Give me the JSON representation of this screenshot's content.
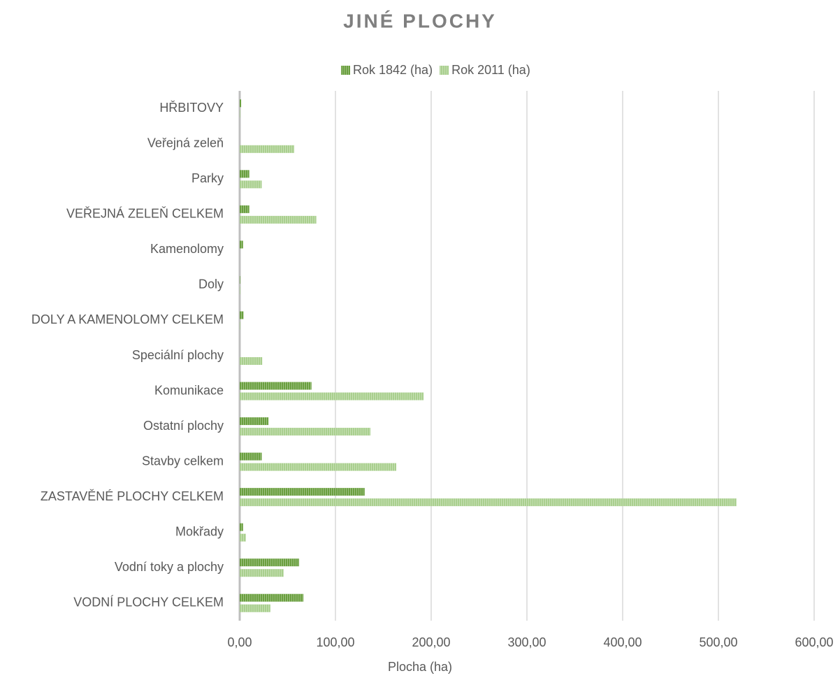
{
  "chart_data": {
    "type": "bar",
    "orientation": "horizontal",
    "title": "JINÉ PLOCHY",
    "xlabel": "Plocha (ha)",
    "categories": [
      "HŘBITOVY",
      "Veřejná zeleň",
      "Parky",
      "VEŘEJNÁ ZELEŇ CELKEM",
      "Kamenolomy",
      "Doly",
      "DOLY A KAMENOLOMY CELKEM",
      "Speciální plochy",
      "Komunikace",
      "Ostatní plochy",
      "Stavby celkem",
      "ZASTAVĚNÉ PLOCHY CELKEM",
      "Mokřady",
      "Vodní toky a plochy",
      "VODNÍ PLOCHY CELKEM"
    ],
    "series": [
      {
        "name": "Rok 1842 (ha)",
        "color": "#6a9f3f",
        "values": [
          1.5,
          0,
          10,
          10,
          3.5,
          0.5,
          4,
          0,
          75,
          30,
          23,
          130.5,
          3.5,
          62,
          66.5
        ]
      },
      {
        "name": "Rok 2011 (ha)",
        "color": "#a9cf8e",
        "values": [
          0.5,
          57,
          23,
          80,
          0,
          0.5,
          0.5,
          23.5,
          192,
          136.5,
          163.5,
          519,
          6.5,
          46,
          32
        ]
      }
    ],
    "xlim": [
      0,
      600
    ],
    "xticks": [
      {
        "value": 0,
        "label": "0,00"
      },
      {
        "value": 100,
        "label": "100,00"
      },
      {
        "value": 200,
        "label": "200,00"
      },
      {
        "value": 300,
        "label": "300,00"
      },
      {
        "value": 400,
        "label": "400,00"
      },
      {
        "value": 500,
        "label": "500,00"
      },
      {
        "value": 600,
        "label": "600,00"
      }
    ],
    "grid": true,
    "legend": "top"
  }
}
